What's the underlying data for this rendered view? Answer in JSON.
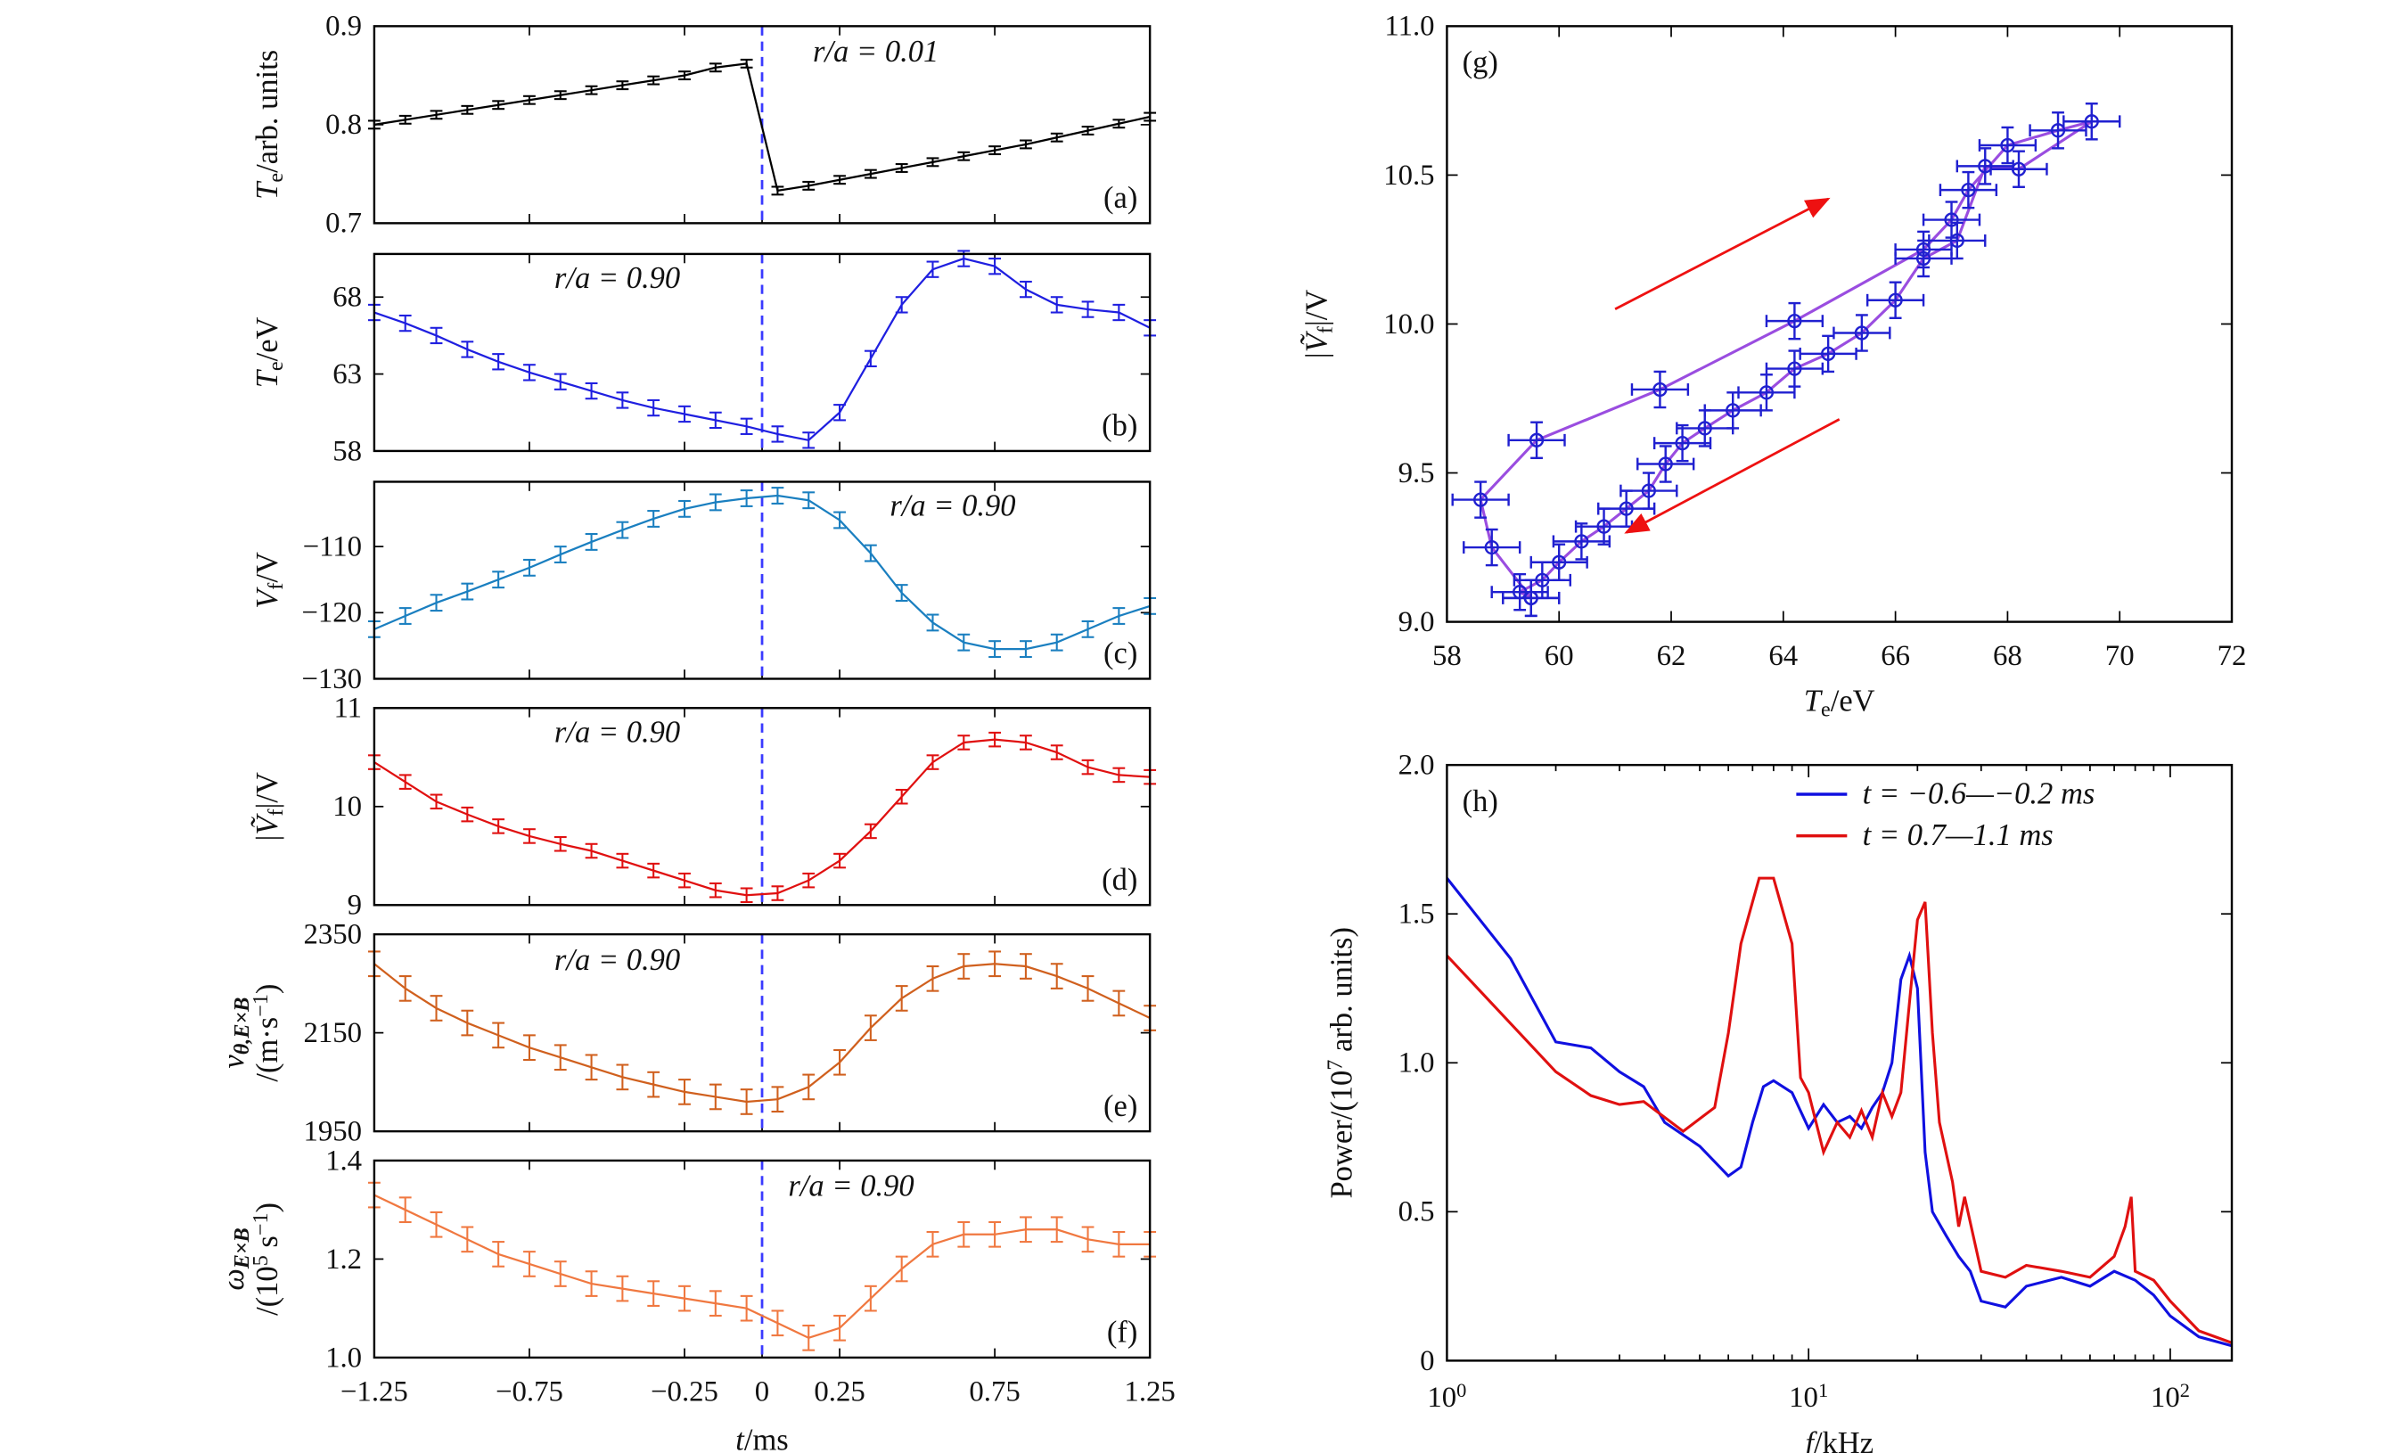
{
  "chart_data": [
    {
      "type": "line",
      "group": "time-traces",
      "xlabel": [
        {
          "t": "t",
          "s": "i"
        },
        {
          "t": "/ms",
          "s": "r"
        }
      ],
      "xlim": [
        -1.25,
        1.25
      ],
      "xticks": [
        -1.25,
        -0.75,
        -0.25,
        0,
        0.25,
        0.75,
        1.25
      ],
      "xtick_labels": [
        "−1.25",
        "−0.75",
        "−0.25",
        "0",
        "0.25",
        "0.75",
        "1.25"
      ],
      "reference_line": {
        "x": 0,
        "style": "dashed",
        "color": "#3a3aff"
      },
      "x": [
        -1.25,
        -1.15,
        -1.05,
        -0.95,
        -0.85,
        -0.75,
        -0.65,
        -0.55,
        -0.45,
        -0.35,
        -0.25,
        -0.15,
        -0.05,
        0.05,
        0.15,
        0.25,
        0.35,
        0.45,
        0.55,
        0.65,
        0.75,
        0.85,
        0.95,
        1.05,
        1.15,
        1.25
      ],
      "panels": [
        {
          "label": "(a)",
          "annotation": "r/a = 0.01",
          "color": "#000000",
          "ylim": [
            0.7,
            0.9
          ],
          "yticks": [
            0.7,
            0.8,
            0.9
          ],
          "ytick_labels": [
            "0.7",
            "0.8",
            "0.9"
          ],
          "error": 0.004,
          "ylabel": [
            [
              {
                "t": "T",
                "s": "i"
              },
              {
                "t": "e",
                "s": "sub"
              },
              {
                "t": "/arb. units",
                "s": "r"
              }
            ]
          ],
          "values": [
            0.8,
            0.805,
            0.81,
            0.815,
            0.82,
            0.825,
            0.83,
            0.835,
            0.84,
            0.845,
            0.85,
            0.858,
            0.862,
            0.733,
            0.738,
            0.744,
            0.75,
            0.756,
            0.762,
            0.768,
            0.774,
            0.78,
            0.787,
            0.794,
            0.801,
            0.808
          ]
        },
        {
          "label": "(b)",
          "annotation": "r/a = 0.90",
          "color": "#1f1fe0",
          "ylim": [
            58,
            70.8
          ],
          "yticks": [
            58,
            63,
            68
          ],
          "ytick_labels": [
            "58",
            "63",
            "68"
          ],
          "error": 0.5,
          "ylabel": [
            [
              {
                "t": "T",
                "s": "i"
              },
              {
                "t": "e",
                "s": "sub"
              },
              {
                "t": "/eV",
                "s": "r"
              }
            ]
          ],
          "values": [
            67.0,
            66.3,
            65.5,
            64.6,
            63.8,
            63.1,
            62.5,
            61.9,
            61.3,
            60.8,
            60.4,
            60.0,
            59.6,
            59.1,
            58.7,
            60.5,
            64.0,
            67.5,
            69.8,
            70.5,
            70.0,
            68.5,
            67.5,
            67.2,
            67.0,
            66.0
          ]
        },
        {
          "label": "(c)",
          "annotation": "r/a = 0.90",
          "color": "#1a7fc0",
          "ylim": [
            -130,
            -100.2
          ],
          "yticks": [
            -130,
            -120,
            -110
          ],
          "ytick_labels": [
            "−130",
            "−120",
            "−110"
          ],
          "error": 1.2,
          "ylabel": [
            [
              {
                "t": "V",
                "s": "i"
              },
              {
                "t": "f",
                "s": "sub"
              },
              {
                "t": "/V",
                "s": "r"
              }
            ]
          ],
          "values": [
            -122.5,
            -120.5,
            -118.5,
            -116.8,
            -115.0,
            -113.2,
            -111.2,
            -109.3,
            -107.5,
            -105.8,
            -104.3,
            -103.3,
            -102.7,
            -102.3,
            -103.0,
            -106.0,
            -111.0,
            -117.0,
            -121.5,
            -124.5,
            -125.5,
            -125.5,
            -124.5,
            -122.5,
            -120.5,
            -119.0
          ]
        },
        {
          "label": "(d)",
          "annotation": "r/a = 0.90",
          "color": "#e01010",
          "ylim": [
            9,
            11
          ],
          "yticks": [
            9,
            10,
            11
          ],
          "ytick_labels": [
            "9",
            "10",
            "11"
          ],
          "error": 0.07,
          "ylabel": [
            [
              {
                "t": "|",
                "s": "r"
              },
              {
                "t": "Ṽ",
                "s": "i"
              },
              {
                "t": "f",
                "s": "sub"
              },
              {
                "t": "|/V",
                "s": "r"
              }
            ]
          ],
          "values": [
            10.45,
            10.25,
            10.05,
            9.92,
            9.8,
            9.7,
            9.62,
            9.55,
            9.45,
            9.35,
            9.25,
            9.15,
            9.1,
            9.12,
            9.25,
            9.45,
            9.75,
            10.1,
            10.45,
            10.65,
            10.68,
            10.65,
            10.55,
            10.4,
            10.32,
            10.3
          ]
        },
        {
          "label": "(e)",
          "annotation": "r/a = 0.90",
          "color": "#d0601e",
          "ylim": [
            1950,
            2350
          ],
          "yticks": [
            1950,
            2150,
            2350
          ],
          "ytick_labels": [
            "1950",
            "2150",
            "2350"
          ],
          "error": 25,
          "ylabel": [
            [
              {
                "t": "v",
                "s": "i"
              },
              {
                "t": "θ,E×B",
                "s": "sub"
              }
            ],
            [
              {
                "t": "/(m·s",
                "s": "r"
              },
              {
                "t": "−1",
                "s": "sup"
              },
              {
                "t": ")",
                "s": "r"
              }
            ]
          ],
          "values": [
            2290,
            2240,
            2200,
            2170,
            2145,
            2120,
            2100,
            2080,
            2060,
            2045,
            2030,
            2020,
            2010,
            2015,
            2040,
            2090,
            2160,
            2220,
            2260,
            2285,
            2290,
            2285,
            2265,
            2240,
            2210,
            2180
          ]
        },
        {
          "label": "(f)",
          "annotation": "r/a = 0.90",
          "color": "#f07840",
          "ylim": [
            1.0,
            1.4
          ],
          "yticks": [
            1.0,
            1.2,
            1.4
          ],
          "ytick_labels": [
            "1.0",
            "1.2",
            "1.4"
          ],
          "error": 0.025,
          "ylabel": [
            [
              {
                "t": "ω",
                "s": "i"
              },
              {
                "t": "E×B",
                "s": "sub"
              }
            ],
            [
              {
                "t": "/(10",
                "s": "r"
              },
              {
                "t": "5",
                "s": "sup"
              },
              {
                "t": " s",
                "s": "r"
              },
              {
                "t": "−1",
                "s": "sup"
              },
              {
                "t": ")",
                "s": "r"
              }
            ]
          ],
          "values": [
            1.33,
            1.3,
            1.27,
            1.24,
            1.21,
            1.19,
            1.17,
            1.15,
            1.14,
            1.13,
            1.12,
            1.11,
            1.1,
            1.07,
            1.04,
            1.06,
            1.12,
            1.18,
            1.23,
            1.25,
            1.25,
            1.26,
            1.26,
            1.24,
            1.23,
            1.23
          ]
        }
      ]
    },
    {
      "type": "scatter",
      "label": "(g)",
      "xlabel": [
        {
          "t": "T",
          "s": "i"
        },
        {
          "t": "e",
          "s": "sub"
        },
        {
          "t": "/eV",
          "s": "r"
        }
      ],
      "ylabel": [
        {
          "t": "|",
          "s": "r"
        },
        {
          "t": "Ṽ",
          "s": "i"
        },
        {
          "t": "f",
          "s": "sub"
        },
        {
          "t": "|/V",
          "s": "r"
        }
      ],
      "xlim": [
        58,
        72
      ],
      "ylim": [
        9.0,
        11.0
      ],
      "xticks": [
        58,
        60,
        62,
        64,
        66,
        68,
        70,
        72
      ],
      "xtick_labels": [
        "58",
        "60",
        "62",
        "64",
        "66",
        "68",
        "70",
        "72"
      ],
      "yticks": [
        9.0,
        9.5,
        10.0,
        10.5,
        11.0
      ],
      "ytick_labels": [
        "9.0",
        "9.5",
        "10.0",
        "10.5",
        "11.0"
      ],
      "line_color": "#9a4de0",
      "marker_color": "#2020d0",
      "xerr": 0.5,
      "yerr": 0.06,
      "points": [
        [
          59.5,
          9.08
        ],
        [
          58.8,
          9.25
        ],
        [
          58.6,
          9.41
        ],
        [
          59.6,
          9.61
        ],
        [
          61.8,
          9.78
        ],
        [
          64.2,
          10.01
        ],
        [
          66.5,
          10.25
        ],
        [
          67.0,
          10.35
        ],
        [
          67.3,
          10.45
        ],
        [
          68.0,
          10.6
        ],
        [
          68.9,
          10.65
        ],
        [
          69.5,
          10.68
        ],
        [
          68.2,
          10.52
        ],
        [
          67.6,
          10.53
        ],
        [
          67.1,
          10.28
        ],
        [
          66.5,
          10.22
        ],
        [
          66.0,
          10.08
        ],
        [
          65.4,
          9.97
        ],
        [
          64.8,
          9.9
        ],
        [
          64.2,
          9.85
        ],
        [
          63.7,
          9.77
        ],
        [
          63.1,
          9.71
        ],
        [
          62.6,
          9.65
        ],
        [
          62.2,
          9.6
        ],
        [
          61.9,
          9.53
        ],
        [
          61.6,
          9.44
        ],
        [
          61.2,
          9.38
        ],
        [
          60.8,
          9.32
        ],
        [
          60.4,
          9.27
        ],
        [
          60.0,
          9.2
        ],
        [
          59.7,
          9.14
        ],
        [
          59.3,
          9.1
        ],
        [
          59.5,
          9.08
        ]
      ],
      "arrows": [
        {
          "from": [
            61.0,
            10.05
          ],
          "to": [
            64.8,
            10.42
          ],
          "color": "#ee1111"
        },
        {
          "from": [
            65.0,
            9.68
          ],
          "to": [
            61.2,
            9.3
          ],
          "color": "#ee1111"
        }
      ]
    },
    {
      "type": "line",
      "label": "(h)",
      "xscale": "log",
      "xlabel": [
        {
          "t": "f",
          "s": "i"
        },
        {
          "t": "/kHz",
          "s": "r"
        }
      ],
      "ylabel": [
        {
          "t": "Power/(10",
          "s": "r"
        },
        {
          "t": "7",
          "s": "sup"
        },
        {
          "t": " arb. units)",
          "s": "r"
        }
      ],
      "xlim": [
        1,
        148
      ],
      "ylim": [
        0,
        2.0
      ],
      "xticks": [
        1,
        10,
        100
      ],
      "xtick_labels": [
        {
          "b": "10",
          "e": "0"
        },
        {
          "b": "10",
          "e": "1"
        },
        {
          "b": "10",
          "e": "2"
        }
      ],
      "yticks": [
        0,
        0.5,
        1.0,
        1.5,
        2.0
      ],
      "ytick_labels": [
        "0",
        "0.5",
        "1.0",
        "1.5",
        "2.0"
      ],
      "legend_position": "top-right",
      "series": [
        {
          "name": "t = −0.6—−0.2 ms",
          "color": "#1010e0",
          "points": [
            [
              1,
              1.62
            ],
            [
              1.5,
              1.35
            ],
            [
              2,
              1.07
            ],
            [
              2.5,
              1.05
            ],
            [
              3,
              0.97
            ],
            [
              3.5,
              0.92
            ],
            [
              4,
              0.8
            ],
            [
              5,
              0.72
            ],
            [
              6,
              0.62
            ],
            [
              6.5,
              0.65
            ],
            [
              7,
              0.8
            ],
            [
              7.5,
              0.92
            ],
            [
              8,
              0.94
            ],
            [
              9,
              0.9
            ],
            [
              10,
              0.78
            ],
            [
              11,
              0.86
            ],
            [
              12,
              0.8
            ],
            [
              13,
              0.82
            ],
            [
              14,
              0.78
            ],
            [
              15,
              0.85
            ],
            [
              16,
              0.9
            ],
            [
              17,
              1.0
            ],
            [
              18,
              1.28
            ],
            [
              19,
              1.36
            ],
            [
              20,
              1.25
            ],
            [
              21,
              0.7
            ],
            [
              22,
              0.5
            ],
            [
              24,
              0.42
            ],
            [
              26,
              0.35
            ],
            [
              28,
              0.3
            ],
            [
              30,
              0.2
            ],
            [
              35,
              0.18
            ],
            [
              40,
              0.25
            ],
            [
              50,
              0.28
            ],
            [
              60,
              0.25
            ],
            [
              70,
              0.3
            ],
            [
              80,
              0.27
            ],
            [
              90,
              0.22
            ],
            [
              100,
              0.15
            ],
            [
              120,
              0.08
            ],
            [
              148,
              0.05
            ]
          ]
        },
        {
          "name": "t = 0.7—1.1 ms",
          "color": "#e01010",
          "points": [
            [
              1,
              1.36
            ],
            [
              2,
              0.97
            ],
            [
              2.5,
              0.89
            ],
            [
              3,
              0.86
            ],
            [
              3.5,
              0.87
            ],
            [
              4.5,
              0.77
            ],
            [
              5.5,
              0.85
            ],
            [
              6,
              1.1
            ],
            [
              6.5,
              1.4
            ],
            [
              7.3,
              1.62
            ],
            [
              8,
              1.62
            ],
            [
              9,
              1.4
            ],
            [
              9.5,
              0.95
            ],
            [
              10,
              0.9
            ],
            [
              11,
              0.7
            ],
            [
              12,
              0.8
            ],
            [
              13,
              0.75
            ],
            [
              14,
              0.84
            ],
            [
              15,
              0.75
            ],
            [
              16,
              0.9
            ],
            [
              17,
              0.82
            ],
            [
              18,
              0.9
            ],
            [
              19,
              1.2
            ],
            [
              20,
              1.48
            ],
            [
              21,
              1.54
            ],
            [
              22,
              1.1
            ],
            [
              23,
              0.8
            ],
            [
              25,
              0.6
            ],
            [
              26,
              0.45
            ],
            [
              27,
              0.55
            ],
            [
              30,
              0.3
            ],
            [
              35,
              0.28
            ],
            [
              40,
              0.32
            ],
            [
              50,
              0.3
            ],
            [
              60,
              0.28
            ],
            [
              70,
              0.35
            ],
            [
              75,
              0.45
            ],
            [
              78,
              0.55
            ],
            [
              80,
              0.3
            ],
            [
              90,
              0.27
            ],
            [
              100,
              0.2
            ],
            [
              120,
              0.1
            ],
            [
              148,
              0.06
            ]
          ]
        }
      ]
    }
  ]
}
